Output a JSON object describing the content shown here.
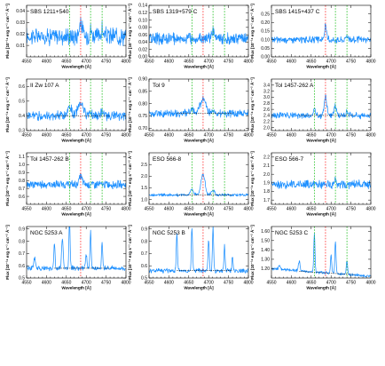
{
  "chart_data": {
    "type": "line",
    "xlabel": "Wavelength [Å]",
    "ylabel": "Flux [10⁻¹⁶ erg s⁻¹ cm⁻² Å⁻¹]",
    "x_ticks": [
      4550,
      4600,
      4650,
      4700,
      4750,
      4800
    ],
    "xlim": [
      4550,
      4800
    ],
    "grid": false,
    "line_colors": {
      "spectrum": "#1e90ff",
      "red_marker": "#ff2a2a",
      "green_marker": "#22c022",
      "continuum": "#000000"
    },
    "panels": [
      {
        "label": "SBS 1211+540",
        "ylim": [
          0.0,
          0.045
        ],
        "yticks": [
          "0.01",
          "0.02",
          "0.03",
          "0.04"
        ],
        "yvals": [
          0.01,
          0.02,
          0.03,
          0.04
        ],
        "baseline": 0.018,
        "noise": 0.006,
        "red_lines": [
          4686
        ],
        "green_lines": [
          4658,
          4711,
          4740
        ],
        "continuum": false,
        "peaks": [
          [
            4686,
            0.012,
            4
          ],
          [
            4711,
            0.006,
            3
          ],
          [
            4740,
            0.005,
            3
          ]
        ]
      },
      {
        "label": "SBS 1319+579 C",
        "ylim": [
          0.0,
          0.14
        ],
        "yticks": [
          "0.00",
          "0.02",
          "0.04",
          "0.06",
          "0.08",
          "0.10",
          "0.12",
          "0.14"
        ],
        "yvals": [
          0.0,
          0.02,
          0.04,
          0.06,
          0.08,
          0.1,
          0.12,
          0.14
        ],
        "baseline": 0.05,
        "noise": 0.012,
        "red_lines": [
          4686
        ],
        "green_lines": [
          4658,
          4711,
          4740
        ],
        "continuum": false,
        "peaks": [
          [
            4711,
            0.02,
            3
          ]
        ]
      },
      {
        "label": "SBS 1415+437 C",
        "ylim": [
          0.0,
          0.3
        ],
        "yticks": [
          "0.00",
          "0.05",
          "0.10",
          "0.15",
          "0.20",
          "0.25"
        ],
        "yvals": [
          0.0,
          0.05,
          0.1,
          0.15,
          0.2,
          0.25
        ],
        "baseline": 0.1,
        "noise": 0.015,
        "red_lines": [
          4686
        ],
        "green_lines": [
          4711,
          4740
        ],
        "continuum": false,
        "peaks": [
          [
            4686,
            0.08,
            2.5
          ],
          [
            4740,
            0.03,
            2.5
          ]
        ]
      },
      {
        "label": "II Zw 107 A",
        "ylim": [
          0.3,
          0.65
        ],
        "yticks": [
          "0.3",
          "0.4",
          "0.5",
          "0.6"
        ],
        "yvals": [
          0.3,
          0.4,
          0.5,
          0.6
        ],
        "baseline": 0.4,
        "noise": 0.025,
        "red_lines": [
          4686
        ],
        "green_lines": [
          4658,
          4711,
          4740
        ],
        "continuum": true,
        "peaks": [
          [
            4658,
            0.06,
            5
          ],
          [
            4686,
            0.09,
            7
          ],
          [
            4711,
            0.03,
            4
          ],
          [
            4740,
            0.02,
            4
          ]
        ]
      },
      {
        "label": "Tol 9",
        "ylim": [
          0.69,
          0.9
        ],
        "yticks": [
          "0.70",
          "0.75",
          "0.80",
          "0.85",
          "0.90"
        ],
        "yvals": [
          0.7,
          0.75,
          0.8,
          0.85,
          0.9
        ],
        "baseline": 0.76,
        "noise": 0.012,
        "red_lines": [
          4686
        ],
        "green_lines": [
          4658,
          4711,
          4740
        ],
        "continuum": true,
        "peaks": [
          [
            4686,
            0.06,
            7
          ],
          [
            4658,
            0.02,
            4
          ],
          [
            4711,
            0.015,
            4
          ]
        ]
      },
      {
        "label": "Tol 1457-262 A",
        "ylim": [
          1.9,
          3.6
        ],
        "yticks": [
          "2.0",
          "2.2",
          "2.4",
          "2.6",
          "2.8",
          "3.0",
          "3.2",
          "3.4"
        ],
        "yvals": [
          2.0,
          2.2,
          2.4,
          2.6,
          2.8,
          3.0,
          3.2,
          3.4
        ],
        "baseline": 2.4,
        "noise": 0.08,
        "red_lines": [
          4686
        ],
        "green_lines": [
          4658,
          4711,
          4740
        ],
        "continuum": true,
        "peaks": [
          [
            4686,
            0.6,
            3.5
          ],
          [
            4711,
            0.3,
            3
          ],
          [
            4740,
            0.15,
            3
          ],
          [
            4658,
            0.2,
            3
          ]
        ]
      },
      {
        "label": "Tol 1457-262 B",
        "ylim": [
          0.5,
          1.15
        ],
        "yticks": [
          "0.6",
          "0.7",
          "0.8",
          "0.9",
          "1.0",
          "1.1"
        ],
        "yvals": [
          0.6,
          0.7,
          0.8,
          0.9,
          1.0,
          1.1
        ],
        "baseline": 0.75,
        "noise": 0.04,
        "red_lines": [
          4686
        ],
        "green_lines": [
          4658,
          4711,
          4740
        ],
        "continuum": false,
        "peaks": [
          [
            4686,
            0.1,
            4
          ]
        ]
      },
      {
        "label": "ESO 566-8",
        "ylim": [
          0.8,
          3.0
        ],
        "yticks": [
          "1.0",
          "1.5",
          "2.0",
          "2.5"
        ],
        "yvals": [
          1.0,
          1.5,
          2.0,
          2.5
        ],
        "baseline": 1.2,
        "noise": 0.05,
        "red_lines": [
          4686
        ],
        "green_lines": [
          4658,
          4711,
          4740
        ],
        "continuum": true,
        "peaks": [
          [
            4686,
            0.9,
            5
          ],
          [
            4658,
            0.25,
            4
          ],
          [
            4711,
            0.2,
            4
          ]
        ]
      },
      {
        "label": "ESO 566-7",
        "ylim": [
          1.65,
          2.25
        ],
        "yticks": [
          "1.7",
          "1.8",
          "1.9",
          "2.0",
          "2.1",
          "2.2"
        ],
        "yvals": [
          1.7,
          1.8,
          1.9,
          2.0,
          2.1,
          2.2
        ],
        "baseline": 1.88,
        "noise": 0.04,
        "red_lines": [
          4686
        ],
        "green_lines": [
          4658,
          4711,
          4740
        ],
        "continuum": false,
        "peaks": [
          [
            4711,
            0.06,
            3
          ]
        ]
      },
      {
        "label": "NGC 5253 A",
        "ylim": [
          0.5,
          0.92
        ],
        "yticks": [
          "0.5",
          "0.6",
          "0.7",
          "0.8",
          "0.9"
        ],
        "yvals": [
          0.5,
          0.6,
          0.7,
          0.8,
          0.9
        ],
        "baseline": 0.58,
        "noise": 0.015,
        "red_lines": [
          4686
        ],
        "green_lines": [],
        "continuum": true,
        "peaks": [
          [
            4658,
            0.4,
            1.5
          ],
          [
            4640,
            0.25,
            2
          ],
          [
            4620,
            0.2,
            1.5
          ],
          [
            4711,
            0.3,
            1.5
          ],
          [
            4740,
            0.2,
            1.5
          ],
          [
            4570,
            0.08,
            2
          ],
          [
            4700,
            0.1,
            2
          ]
        ]
      },
      {
        "label": "NGC 5253 B",
        "ylim": [
          0.5,
          0.92
        ],
        "yticks": [
          "0.5",
          "0.6",
          "0.7",
          "0.8",
          "0.9"
        ],
        "yvals": [
          0.5,
          0.6,
          0.7,
          0.8,
          0.9
        ],
        "baseline": 0.56,
        "noise": 0.015,
        "red_lines": [
          4686
        ],
        "green_lines": [],
        "continuum": true,
        "peaks": [
          [
            4658,
            0.35,
            1.5
          ],
          [
            4620,
            0.3,
            1.5
          ],
          [
            4711,
            0.35,
            1.5
          ],
          [
            4740,
            0.2,
            1.5
          ],
          [
            4700,
            0.25,
            1.5
          ],
          [
            4760,
            0.12,
            1.5
          ]
        ]
      },
      {
        "label": "NGC 5253 C",
        "ylim": [
          1.1,
          1.65
        ],
        "yticks": [
          "1.20",
          "1.30",
          "1.40",
          "1.50",
          "1.60"
        ],
        "yvals": [
          1.2,
          1.3,
          1.4,
          1.5,
          1.6
        ],
        "baseline": 1.2,
        "noise": 0.012,
        "red_lines": [
          4686
        ],
        "green_lines": [
          4658,
          4740
        ],
        "continuum": true,
        "peaks": [
          [
            4658,
            0.4,
            1.5
          ],
          [
            4711,
            0.35,
            1.5
          ],
          [
            4700,
            0.2,
            1.5
          ],
          [
            4740,
            0.15,
            1.5
          ],
          [
            4620,
            0.1,
            2
          ],
          [
            4570,
            0.05,
            2
          ]
        ],
        "slope": -0.08
      }
    ]
  }
}
